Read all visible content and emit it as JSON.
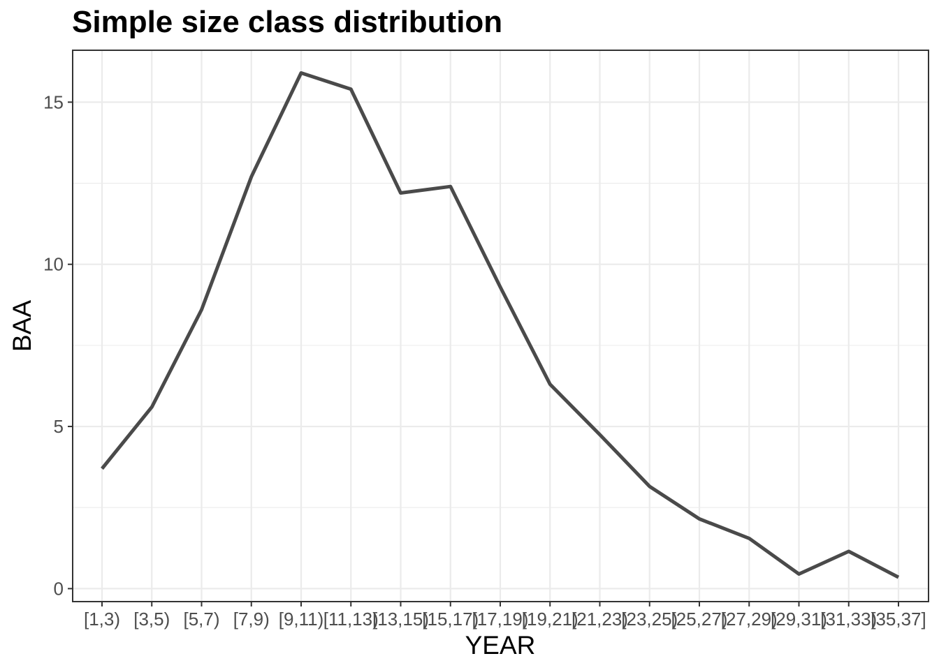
{
  "chart_data": {
    "type": "line",
    "title": "Simple size class distribution",
    "xlabel": "YEAR",
    "ylabel": "BAA",
    "categories": [
      "[1,3)",
      "[3,5)",
      "[5,7)",
      "[7,9)",
      "[9,11)",
      "[11,13)",
      "[13,15)",
      "[15,17)",
      "[17,19)",
      "[19,21)",
      "[21,23)",
      "[23,25)",
      "[25,27)",
      "[27,29)",
      "[29,31)",
      "[31,33)",
      "[35,37]"
    ],
    "series": [
      {
        "values": [
          3.7,
          5.6,
          8.6,
          12.7,
          15.9,
          15.4,
          12.2,
          12.4,
          9.3,
          6.3,
          4.75,
          3.15,
          2.15,
          1.55,
          0.45,
          1.15,
          0.35
        ],
        "color": "#4a4a4a"
      }
    ],
    "ylim": [
      -0.4,
      16.6
    ],
    "yticks": [
      0,
      5,
      10,
      15
    ],
    "ytick_labels": [
      "0",
      "5",
      "10",
      "15"
    ],
    "grid": true,
    "legend": "none",
    "theme": "bw"
  }
}
